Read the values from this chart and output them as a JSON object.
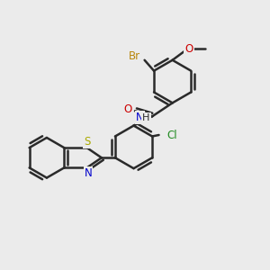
{
  "background_color": "#ebebeb",
  "line_color": "#2a2a2a",
  "bond_width": 1.8,
  "figsize": [
    3.0,
    3.0
  ],
  "dpi": 100,
  "colors": {
    "Br": "#b8860b",
    "O": "#cc0000",
    "N": "#0000cc",
    "Cl": "#228b22",
    "S": "#aaaa00",
    "C": "#2a2a2a",
    "H": "#2a2a2a"
  },
  "label_fontsize": 8.5
}
